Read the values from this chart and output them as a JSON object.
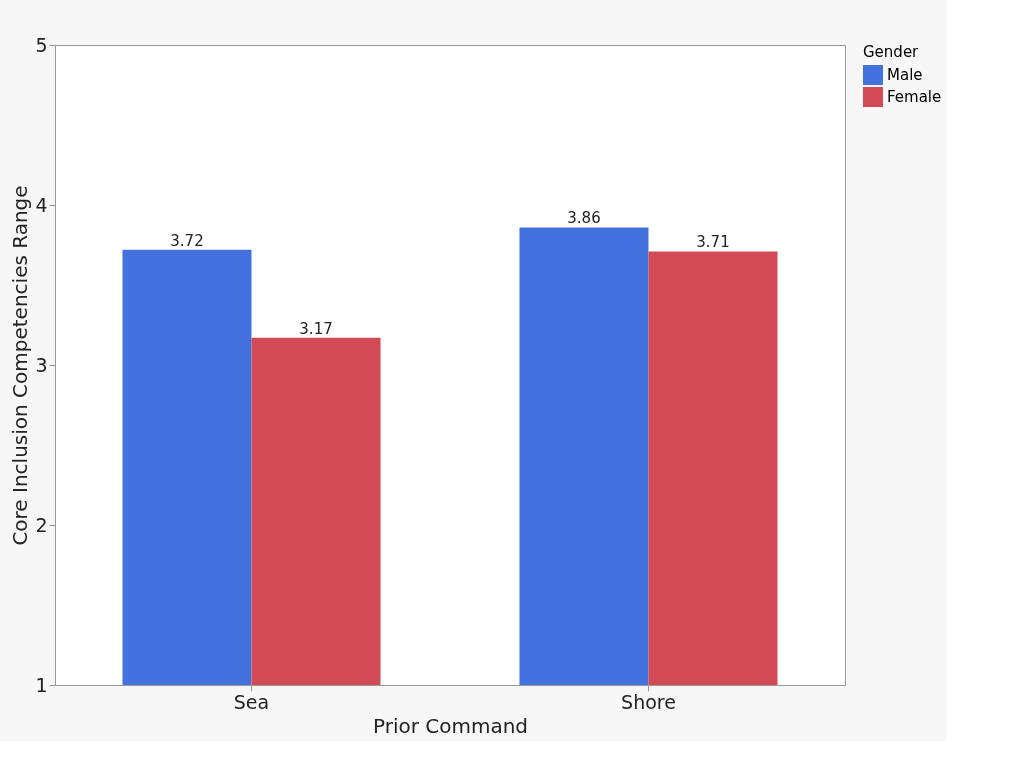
{
  "chart_data": {
    "type": "bar",
    "xlabel": "Prior Command",
    "ylabel": "Core Inclusion Competencies Range",
    "legend_title": "Gender",
    "categories": [
      "Sea",
      "Shore"
    ],
    "series": [
      {
        "name": "Male",
        "color": "#4371dd",
        "values": [
          3.72,
          3.86
        ]
      },
      {
        "name": "Female",
        "color": "#d34a57",
        "values": [
          3.17,
          3.71
        ]
      }
    ],
    "ylim": [
      1,
      5
    ],
    "yticks": [
      1,
      2,
      3,
      4,
      5
    ],
    "data_labels": true,
    "grid": false,
    "legend": "top right"
  }
}
